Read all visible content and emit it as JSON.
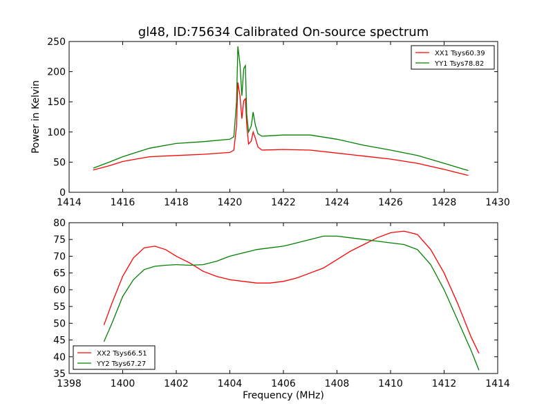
{
  "chart_data": [
    {
      "type": "line",
      "title": "gl48, ID:75634 Calibrated On-source spectrum",
      "xlabel": "",
      "ylabel": "Power in Kelvin",
      "xlim": [
        1414,
        1430
      ],
      "ylim": [
        0,
        250
      ],
      "xticks": [
        1414,
        1416,
        1418,
        1420,
        1422,
        1424,
        1426,
        1428,
        1430
      ],
      "yticks": [
        0,
        50,
        100,
        150,
        200,
        250
      ],
      "legend_position": "top-right",
      "grid": false,
      "series": [
        {
          "name": "XX1 Tsys60.39",
          "color": "#ff0000",
          "x": [
            1414.9,
            1415.5,
            1416,
            1416.5,
            1417,
            1418,
            1419,
            1420,
            1420.15,
            1420.25,
            1420.3,
            1420.38,
            1420.45,
            1420.52,
            1420.58,
            1420.63,
            1420.7,
            1420.8,
            1420.87,
            1420.95,
            1421.05,
            1421.2,
            1422,
            1423,
            1424,
            1425,
            1426,
            1427,
            1428,
            1428.9
          ],
          "y": [
            37,
            44,
            51,
            55,
            59,
            61,
            63,
            66,
            70,
            110,
            182,
            160,
            122,
            152,
            155,
            112,
            80,
            85,
            100,
            90,
            75,
            70,
            71,
            70,
            65,
            60,
            55,
            48,
            38,
            28
          ]
        },
        {
          "name": "YY1 Tsys78.82",
          "color": "#008000",
          "x": [
            1414.9,
            1415.5,
            1416,
            1416.5,
            1417,
            1418,
            1419,
            1420,
            1420.15,
            1420.25,
            1420.3,
            1420.38,
            1420.45,
            1420.52,
            1420.58,
            1420.63,
            1420.7,
            1420.8,
            1420.87,
            1420.95,
            1421.05,
            1421.2,
            1422,
            1423,
            1424,
            1425,
            1426,
            1427,
            1428,
            1428.9
          ],
          "y": [
            40,
            50,
            59,
            66,
            73,
            81,
            84,
            88,
            92,
            150,
            242,
            212,
            160,
            205,
            210,
            130,
            100,
            110,
            133,
            112,
            97,
            93,
            95,
            95,
            88,
            78,
            70,
            61,
            48,
            36
          ]
        }
      ]
    },
    {
      "type": "line",
      "title": "",
      "xlabel": "Frequency (MHz)",
      "ylabel": "",
      "xlim": [
        1398,
        1414
      ],
      "ylim": [
        35,
        80
      ],
      "xticks": [
        1398,
        1400,
        1402,
        1404,
        1406,
        1408,
        1410,
        1412,
        1414
      ],
      "yticks": [
        35,
        40,
        45,
        50,
        55,
        60,
        65,
        70,
        75,
        80
      ],
      "legend_position": "bottom-left",
      "grid": false,
      "series": [
        {
          "name": "XX2 Tsys66.51",
          "color": "#ff0000",
          "x": [
            1399.3,
            1399.6,
            1400,
            1400.4,
            1400.8,
            1401.2,
            1401.6,
            1402,
            1402.5,
            1403,
            1403.5,
            1404,
            1404.5,
            1405,
            1405.5,
            1406,
            1406.5,
            1407,
            1407.5,
            1408,
            1408.5,
            1409,
            1409.5,
            1410,
            1410.5,
            1411,
            1411.5,
            1412,
            1412.5,
            1413,
            1413.3
          ],
          "y": [
            49.5,
            56,
            64,
            69.5,
            72.5,
            73,
            72,
            70,
            68,
            65.5,
            64,
            63,
            62.5,
            62,
            62,
            62.5,
            63.5,
            65,
            66.5,
            69,
            71.5,
            73.5,
            75.5,
            77,
            77.5,
            76.5,
            72,
            65,
            56,
            46,
            41
          ]
        },
        {
          "name": "YY2 Tsys67.27",
          "color": "#008000",
          "x": [
            1399.3,
            1399.6,
            1400,
            1400.4,
            1400.8,
            1401.2,
            1401.6,
            1402,
            1402.5,
            1403,
            1403.5,
            1404,
            1404.5,
            1405,
            1405.5,
            1406,
            1406.5,
            1407,
            1407.5,
            1408,
            1408.5,
            1409,
            1409.5,
            1410,
            1410.5,
            1411,
            1411.5,
            1412,
            1412.5,
            1413,
            1413.3
          ],
          "y": [
            44.5,
            50,
            58,
            63,
            66,
            67,
            67.3,
            67.5,
            67.3,
            67.5,
            68.5,
            70,
            71,
            72,
            72.5,
            73,
            74,
            75,
            76,
            76,
            75.5,
            75,
            74.5,
            74,
            73.5,
            72,
            67.5,
            60,
            51,
            42,
            36
          ]
        }
      ]
    }
  ]
}
